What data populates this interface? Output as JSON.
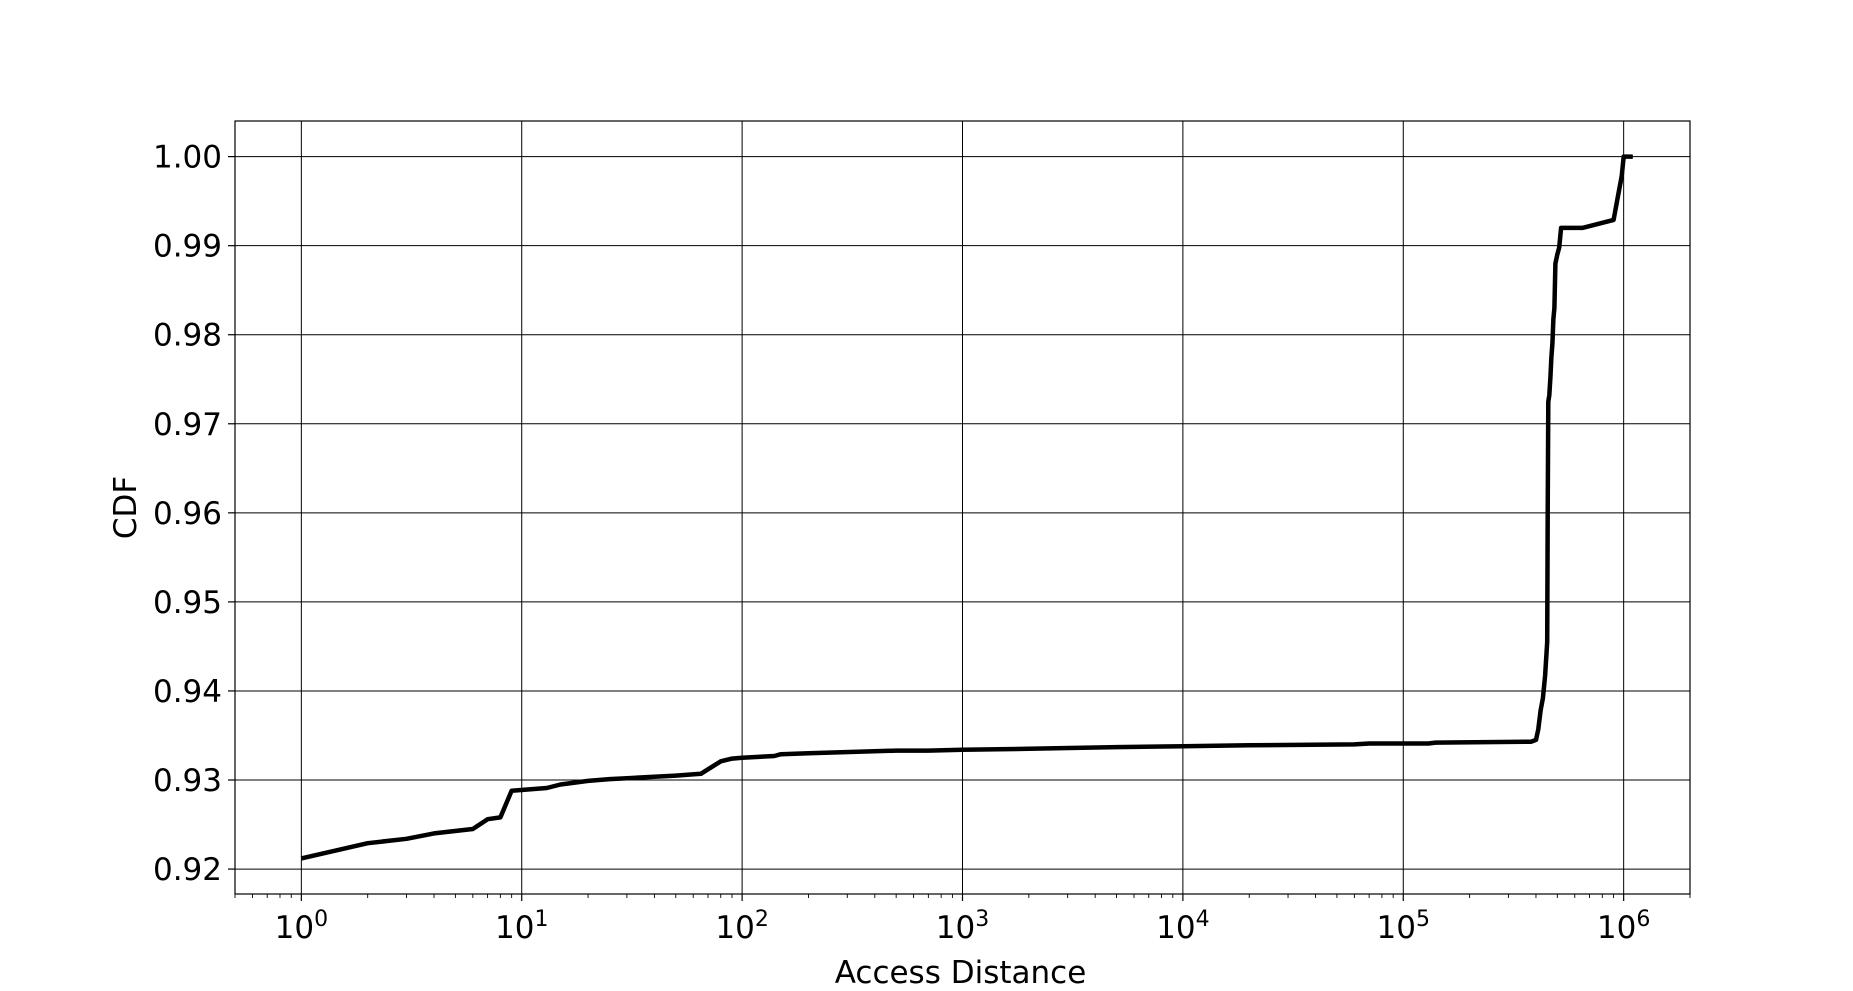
{
  "chart_data": {
    "type": "line",
    "title": "",
    "xlabel": "Access Distance",
    "ylabel": "CDF",
    "xscale": "log",
    "xlim": [
      0.5,
      2000000
    ],
    "ylim": [
      0.9172,
      1.004
    ],
    "grid": true,
    "x_ticks": [
      {
        "value": 1,
        "base": "10",
        "exp": "0"
      },
      {
        "value": 10,
        "base": "10",
        "exp": "1"
      },
      {
        "value": 100,
        "base": "10",
        "exp": "2"
      },
      {
        "value": 1000,
        "base": "10",
        "exp": "3"
      },
      {
        "value": 10000,
        "base": "10",
        "exp": "4"
      },
      {
        "value": 100000,
        "base": "10",
        "exp": "5"
      },
      {
        "value": 1000000,
        "base": "10",
        "exp": "6"
      }
    ],
    "y_ticks": [
      {
        "value": 0.92,
        "label": "0.92"
      },
      {
        "value": 0.93,
        "label": "0.93"
      },
      {
        "value": 0.94,
        "label": "0.94"
      },
      {
        "value": 0.95,
        "label": "0.95"
      },
      {
        "value": 0.96,
        "label": "0.96"
      },
      {
        "value": 0.97,
        "label": "0.97"
      },
      {
        "value": 0.98,
        "label": "0.98"
      },
      {
        "value": 0.99,
        "label": "0.99"
      },
      {
        "value": 1.0,
        "label": "1.00"
      }
    ],
    "series": [
      {
        "color": "#000000",
        "x": [
          1,
          2,
          3,
          4,
          6,
          7,
          8,
          9,
          13,
          15,
          20,
          25,
          30,
          50,
          65,
          70,
          80,
          90,
          100,
          140,
          150,
          200,
          500,
          700,
          1000,
          2000,
          5000,
          10000,
          20000,
          60000,
          70000,
          130000,
          140000,
          380000,
          400000,
          410000,
          420000,
          430000,
          440000,
          450000,
          452000,
          455000,
          460000,
          465000,
          470000,
          475000,
          480000,
          485000,
          490000,
          500000,
          510000,
          520000,
          540000,
          650000,
          900000,
          950000,
          980000,
          1000000,
          1100000
        ],
        "y": [
          0.9212,
          0.9229,
          0.9234,
          0.924,
          0.9245,
          0.9256,
          0.9258,
          0.9288,
          0.9291,
          0.9295,
          0.9299,
          0.9301,
          0.9302,
          0.9305,
          0.9307,
          0.9312,
          0.9321,
          0.9324,
          0.9325,
          0.9327,
          0.9329,
          0.933,
          0.9333,
          0.9333,
          0.9334,
          0.9335,
          0.9337,
          0.9338,
          0.9339,
          0.934,
          0.9341,
          0.9341,
          0.9342,
          0.9343,
          0.9345,
          0.9357,
          0.9378,
          0.9392,
          0.9417,
          0.9455,
          0.96,
          0.9725,
          0.9732,
          0.9752,
          0.9775,
          0.979,
          0.9818,
          0.983,
          0.988,
          0.989,
          0.9898,
          0.992,
          0.992,
          0.992,
          0.9929,
          0.996,
          0.9978,
          1.0,
          1.0
        ]
      }
    ]
  }
}
